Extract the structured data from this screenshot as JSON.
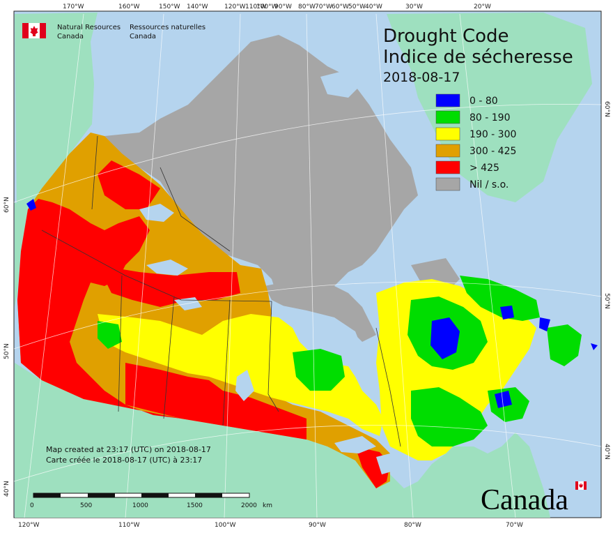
{
  "header": {
    "agency_en_1": "Natural Resources",
    "agency_en_2": "Canada",
    "agency_fr_1": "Ressources naturelles",
    "agency_fr_2": "Canada"
  },
  "title": {
    "en": "Drought Code",
    "fr": "Indice de sécheresse",
    "date": "2018-08-17"
  },
  "legend": [
    {
      "label": "0 - 80",
      "color": "#0000ff"
    },
    {
      "label": "80 - 190",
      "color": "#00dd00"
    },
    {
      "label": "190 - 300",
      "color": "#ffff00"
    },
    {
      "label": "300 - 425",
      "color": "#e0a000"
    },
    {
      "label": "> 425",
      "color": "#ff0000"
    },
    {
      "label": "Nil / s.o.",
      "color": "#a6a6a6"
    }
  ],
  "credits": {
    "en": "Map created at 23:17 (UTC) on 2018-08-17",
    "fr": "Carte créée le 2018-08-17 (UTC) à 23:17"
  },
  "scale_bar": {
    "labels": [
      "0",
      "500",
      "1000",
      "1500",
      "2000"
    ],
    "unit": "km"
  },
  "wordmark": "Canada",
  "axes": {
    "top": [
      "170°W",
      "160°W",
      "150°W",
      "140°W",
      "120°W",
      "110°W",
      "100°W",
      "90°W",
      "80°W",
      "70°W",
      "60°W",
      "50°W",
      "40°W",
      "30°W",
      "20°W"
    ],
    "bottom": [
      "120°W",
      "110°W",
      "100°W",
      "90°W",
      "80°W",
      "70°W"
    ],
    "left": [
      "60°N",
      "50°N",
      "40°N"
    ],
    "right": [
      "60°N",
      "50°N",
      "40°N"
    ]
  },
  "colors": {
    "ocean": "#b5d4ee",
    "land_outside": "#9ee0bf",
    "no_data": "#a6a6a6"
  }
}
